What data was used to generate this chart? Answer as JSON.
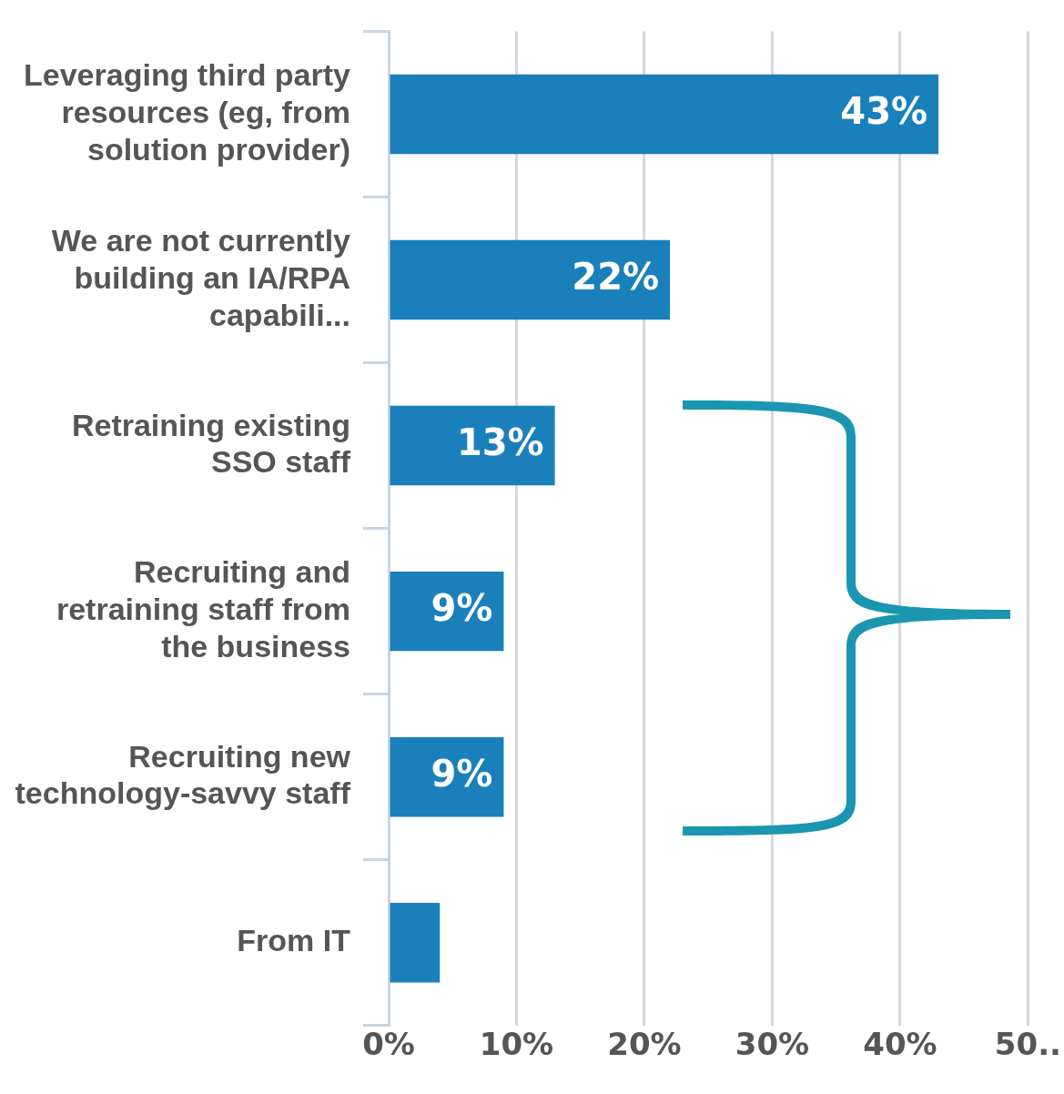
{
  "chart_data": {
    "type": "bar",
    "orientation": "horizontal",
    "categories": [
      "Leveraging third party resources (eg, from solution provider)",
      "We are not currently building an IA/RPA capabili...",
      "Retraining existing SSO staff",
      "Recruiting and retraining staff from the business",
      "Recruiting new technology-savvy staff",
      "From IT"
    ],
    "values": [
      43,
      22,
      13,
      9,
      9,
      4
    ],
    "value_labels": [
      "43%",
      "22%",
      "13%",
      "9%",
      "9%",
      null
    ],
    "color": "#1a80bb",
    "xlim": [
      0,
      50
    ],
    "xticks": [
      {
        "value": 0,
        "label": "0%"
      },
      {
        "value": 10,
        "label": "10%"
      },
      {
        "value": 20,
        "label": "20%"
      },
      {
        "value": 30,
        "label": "30%"
      },
      {
        "value": 40,
        "label": "40%"
      },
      {
        "value": 50,
        "label": "50.."
      }
    ],
    "grid": "x",
    "legend": false
  }
}
